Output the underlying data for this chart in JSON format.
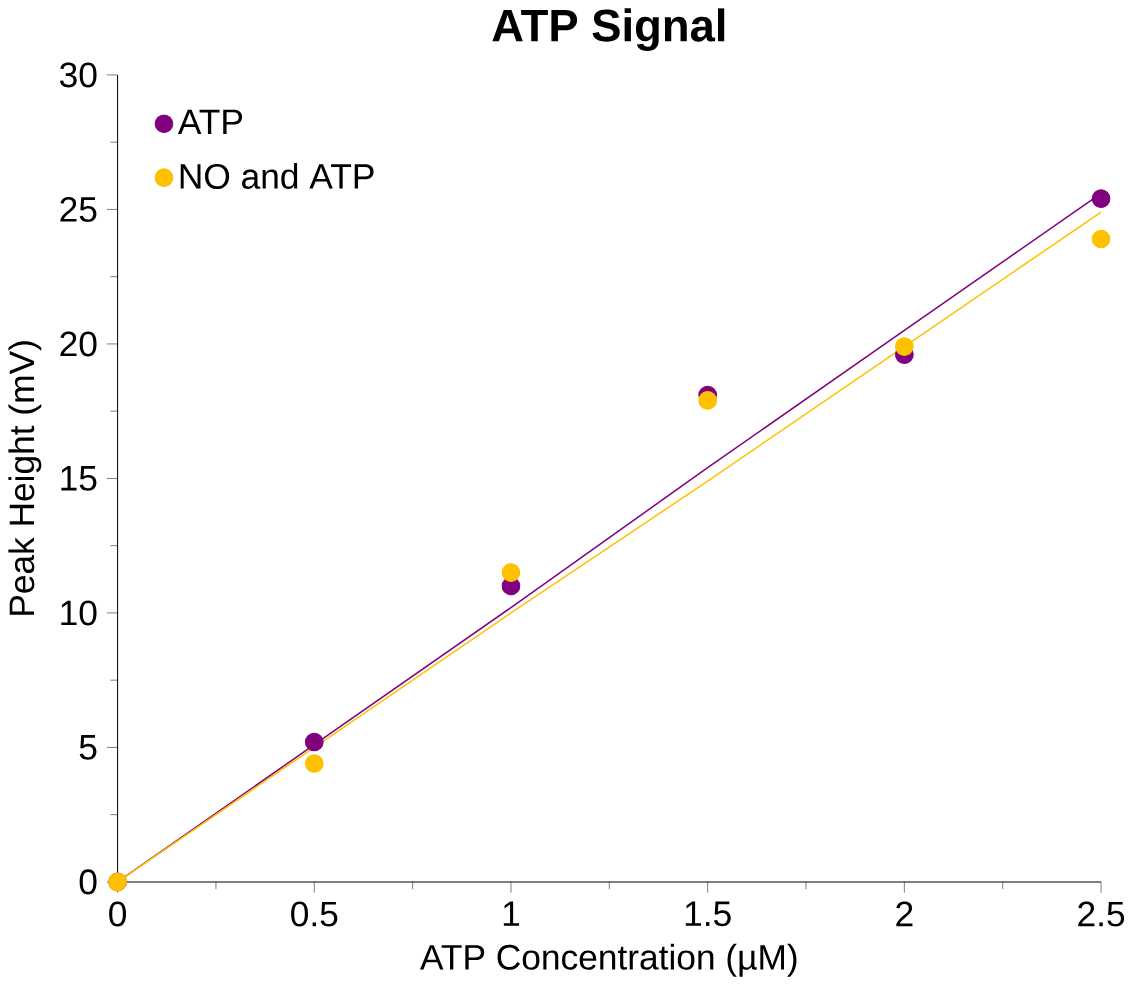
{
  "chart_data": {
    "type": "scatter",
    "title": "ATP Signal",
    "xlabel": "ATP Concentration (µM)",
    "ylabel": "Peak Height (mV)",
    "x": [
      0,
      0.5,
      1,
      1.5,
      2,
      2.5
    ],
    "series": [
      {
        "name": "ATP",
        "color": "#800080",
        "values": [
          0,
          5.2,
          11.0,
          18.1,
          19.6,
          25.4
        ],
        "marker": "circle"
      },
      {
        "name": "NO and ATP",
        "color": "#ffc000",
        "values": [
          0,
          4.4,
          11.5,
          17.9,
          19.9,
          23.9
        ],
        "marker": "circle"
      },
      {
        "type": "line",
        "color": "#800080",
        "values": [
          0,
          5.1,
          10.2,
          15.4,
          20.5,
          25.6
        ],
        "marker": "none"
      },
      {
        "type": "line",
        "color": "#ffc000",
        "values": [
          0,
          5.0,
          10.0,
          14.9,
          19.9,
          24.9
        ],
        "marker": "none"
      }
    ],
    "xlim": [
      0,
      2.5
    ],
    "xticks": [
      0,
      0.5,
      1,
      1.5,
      2,
      2.5
    ],
    "ylim": [
      0,
      30
    ],
    "yticks": [
      0,
      5,
      10,
      15,
      20,
      25,
      30
    ],
    "legend": "top left",
    "grid": false
  }
}
